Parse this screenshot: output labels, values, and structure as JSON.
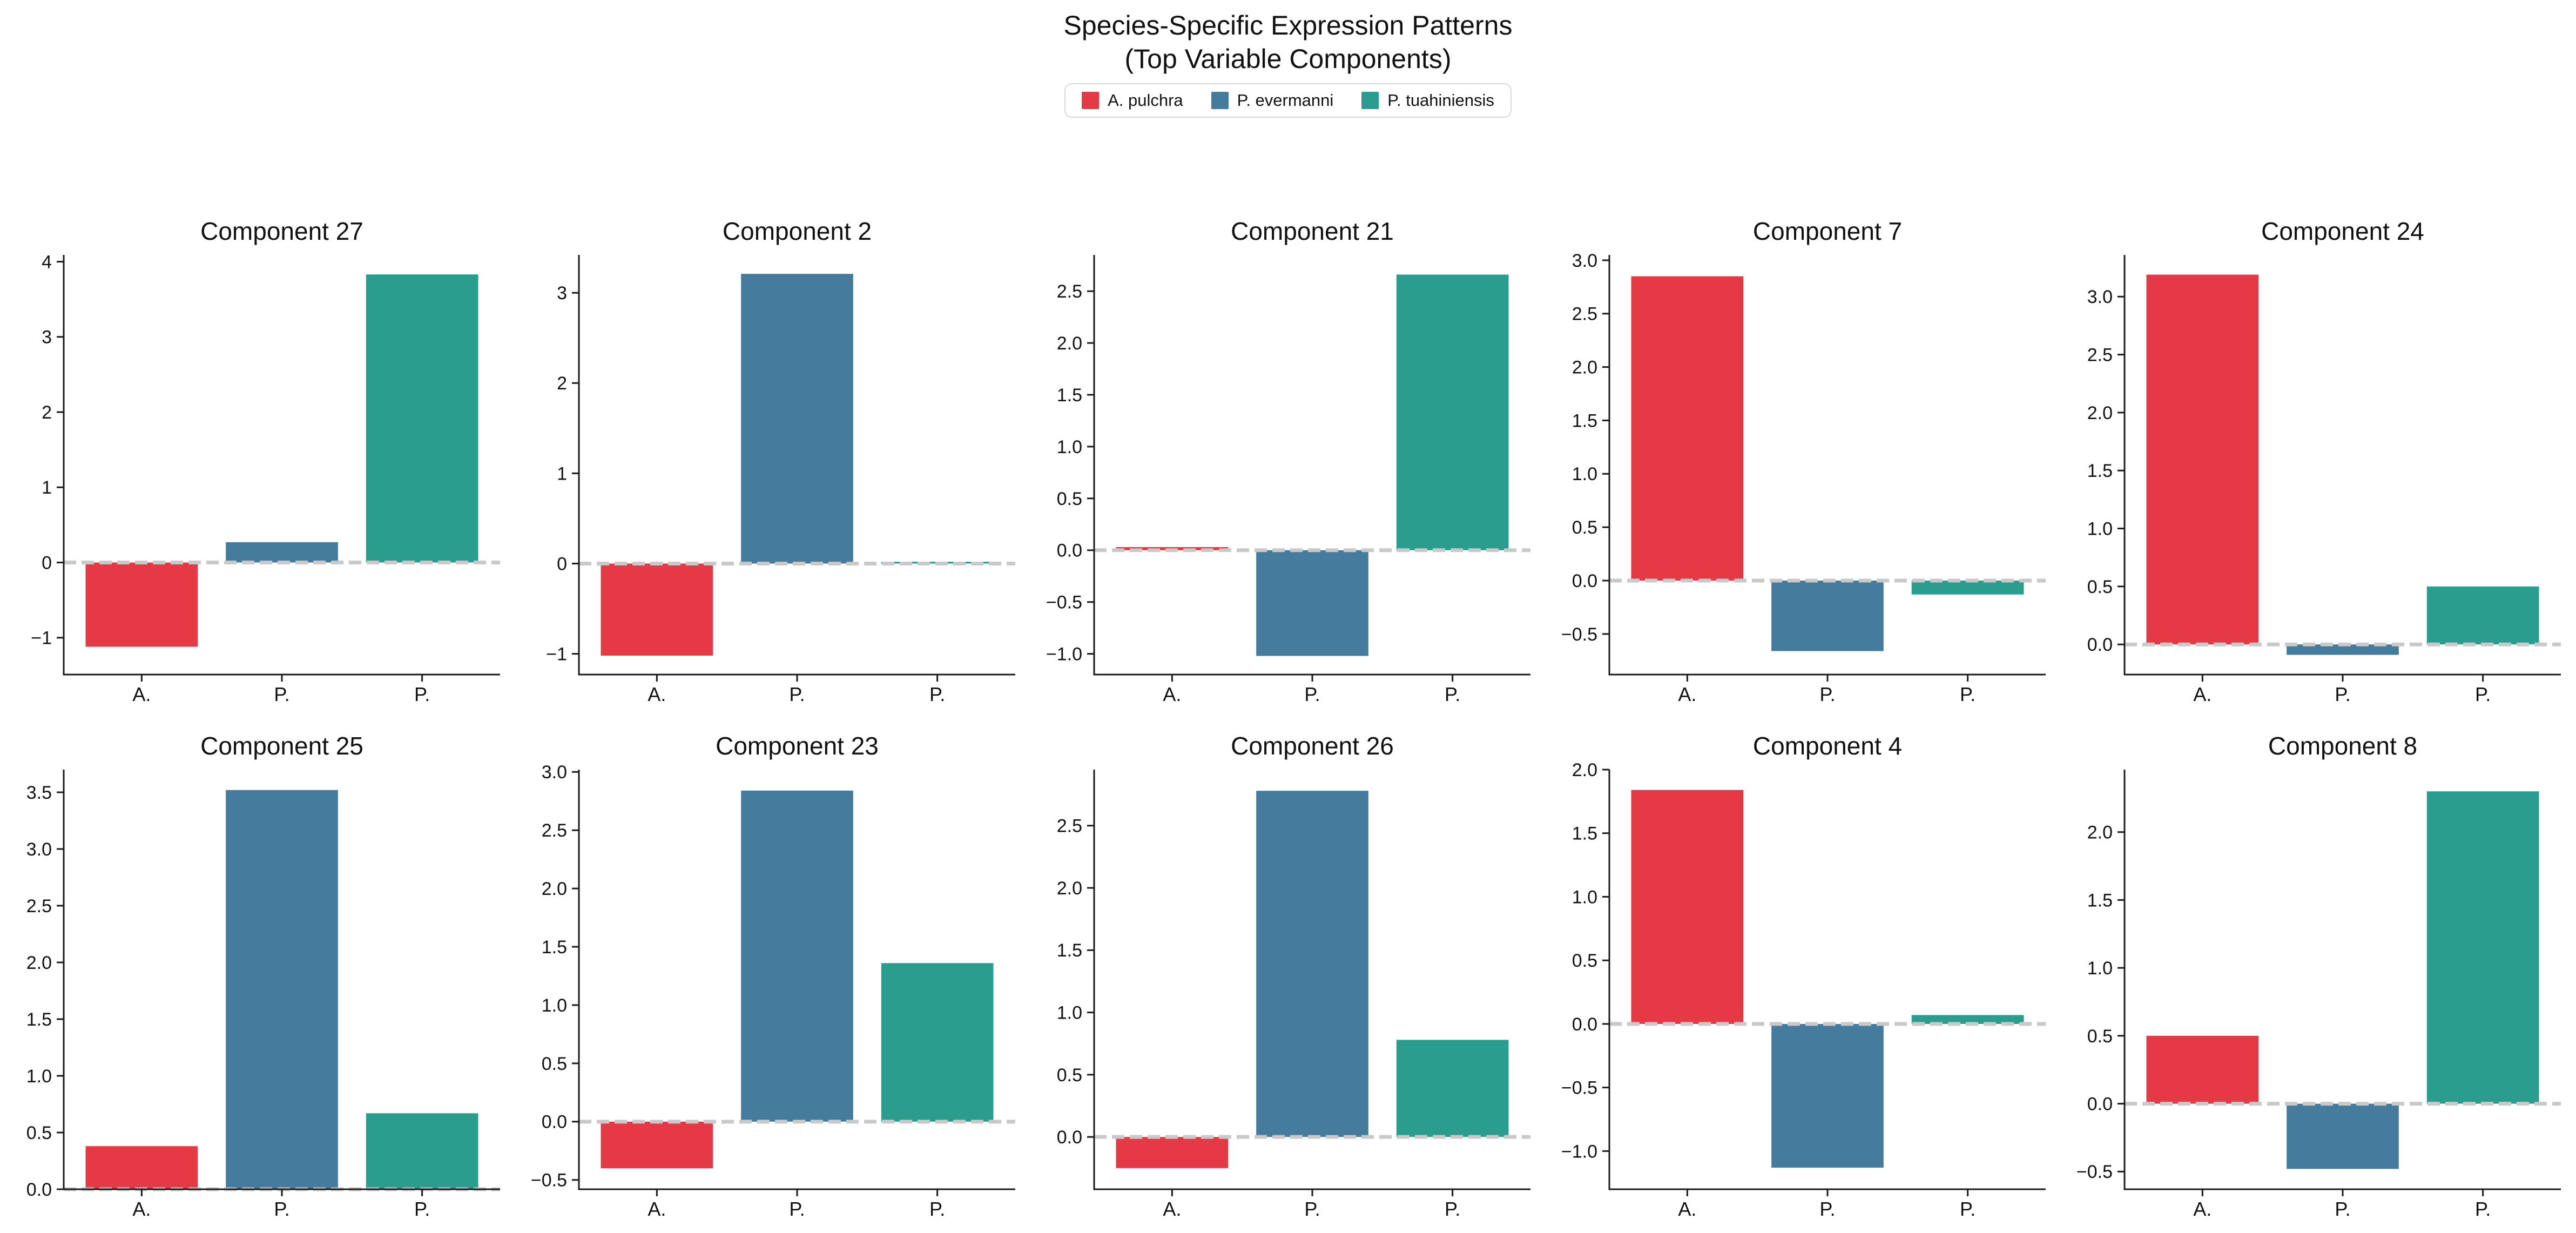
{
  "header": {
    "title_line1": "Species-Specific Expression Patterns",
    "title_line2": "(Top Variable Components)",
    "legend": [
      {
        "label": "A. pulchra",
        "color": "#e63946"
      },
      {
        "label": "P. evermanni",
        "color": "#457b9d"
      },
      {
        "label": "P. tuahiniensis",
        "color": "#2a9d8f"
      }
    ]
  },
  "chart_data": {
    "type": "bar",
    "categories": [
      "A. pulchra",
      "P. evermanni",
      "P. tuahiniensis"
    ],
    "x_tick_labels": [
      "A.",
      "P.",
      "P."
    ],
    "series_colors": [
      "#e63946",
      "#457b9d",
      "#2a9d8f"
    ],
    "grid": false,
    "legend_position": "top-center",
    "zero_line": {
      "y": 0,
      "style": "dashed",
      "color": "#c9c9c9"
    },
    "subplots": [
      {
        "title": "Component 27",
        "values": [
          -1.12,
          0.27,
          3.83
        ],
        "ylim": [
          -1.49,
          4.09
        ],
        "tick_vals": [
          4,
          3,
          2,
          1,
          0,
          -1
        ],
        "tick_labels": [
          "4",
          "3",
          "2",
          "1",
          "0",
          "−1"
        ]
      },
      {
        "title": "Component 2",
        "values": [
          -1.02,
          3.21,
          0.02
        ],
        "ylim": [
          -1.23,
          3.42
        ],
        "tick_vals": [
          3,
          2,
          1,
          0,
          -1
        ],
        "tick_labels": [
          "3",
          "2",
          "1",
          "0",
          "−1"
        ]
      },
      {
        "title": "Component 21",
        "values": [
          0.03,
          -1.02,
          2.66
        ],
        "ylim": [
          -1.2,
          2.85
        ],
        "tick_vals": [
          2.5,
          2.0,
          1.5,
          1.0,
          0.5,
          0.0,
          -0.5,
          -1.0
        ],
        "tick_labels": [
          "2.5",
          "2.0",
          "1.5",
          "1.0",
          "0.5",
          "0.0",
          "−0.5",
          "−1.0"
        ]
      },
      {
        "title": "Component 7",
        "values": [
          2.85,
          -0.66,
          -0.13
        ],
        "ylim": [
          -0.88,
          3.05
        ],
        "tick_vals": [
          3.0,
          2.5,
          2.0,
          1.5,
          1.0,
          0.5,
          0.0,
          -0.5
        ],
        "tick_labels": [
          "3.0",
          "2.5",
          "2.0",
          "1.5",
          "1.0",
          "0.5",
          "0.0",
          "−0.5"
        ]
      },
      {
        "title": "Component 24",
        "values": [
          3.19,
          -0.09,
          0.5
        ],
        "ylim": [
          -0.26,
          3.36
        ],
        "tick_vals": [
          3.0,
          2.5,
          2.0,
          1.5,
          1.0,
          0.5,
          0.0
        ],
        "tick_labels": [
          "3.0",
          "2.5",
          "2.0",
          "1.5",
          "1.0",
          "0.5",
          "0.0"
        ]
      },
      {
        "title": "Component 25",
        "values": [
          0.38,
          3.52,
          0.67
        ],
        "ylim": [
          0,
          3.7
        ],
        "tick_vals": [
          3.5,
          3.0,
          2.5,
          2.0,
          1.5,
          1.0,
          0.5,
          0.0
        ],
        "tick_labels": [
          "3.5",
          "3.0",
          "2.5",
          "2.0",
          "1.5",
          "1.0",
          "0.5",
          "0.0"
        ]
      },
      {
        "title": "Component 23",
        "values": [
          -0.4,
          2.84,
          1.36
        ],
        "ylim": [
          -0.58,
          3.02
        ],
        "tick_vals": [
          3.0,
          2.5,
          2.0,
          1.5,
          1.0,
          0.5,
          0.0,
          -0.5
        ],
        "tick_labels": [
          "3.0",
          "2.5",
          "2.0",
          "1.5",
          "1.0",
          "0.5",
          "0.0",
          "−0.5"
        ]
      },
      {
        "title": "Component 26",
        "values": [
          -0.25,
          2.78,
          0.78
        ],
        "ylim": [
          -0.42,
          2.95
        ],
        "tick_vals": [
          2.5,
          2.0,
          1.5,
          1.0,
          0.5,
          0.0
        ],
        "tick_labels": [
          "2.5",
          "2.0",
          "1.5",
          "1.0",
          "0.5",
          "0.0"
        ]
      },
      {
        "title": "Component 4",
        "values": [
          1.84,
          -1.13,
          0.07
        ],
        "ylim": [
          -1.3,
          2.0
        ],
        "tick_vals": [
          2.0,
          1.5,
          1.0,
          0.5,
          0.0,
          -0.5,
          -1.0
        ],
        "tick_labels": [
          "2.0",
          "1.5",
          "1.0",
          "0.5",
          "0.0",
          "−0.5",
          "−1.0"
        ]
      },
      {
        "title": "Component 8",
        "values": [
          0.5,
          -0.48,
          2.3
        ],
        "ylim": [
          -0.63,
          2.46
        ],
        "tick_vals": [
          2.0,
          1.5,
          1.0,
          0.5,
          0.0,
          -0.5
        ],
        "tick_labels": [
          "2.0",
          "1.5",
          "1.0",
          "0.5",
          "0.0",
          "−0.5"
        ]
      }
    ]
  },
  "style": {
    "spine_color": "#1a1a1a",
    "text_color": "#111111",
    "zero_line_color": "#c9c9c9",
    "legend_border_color": "#d8d8d8"
  }
}
